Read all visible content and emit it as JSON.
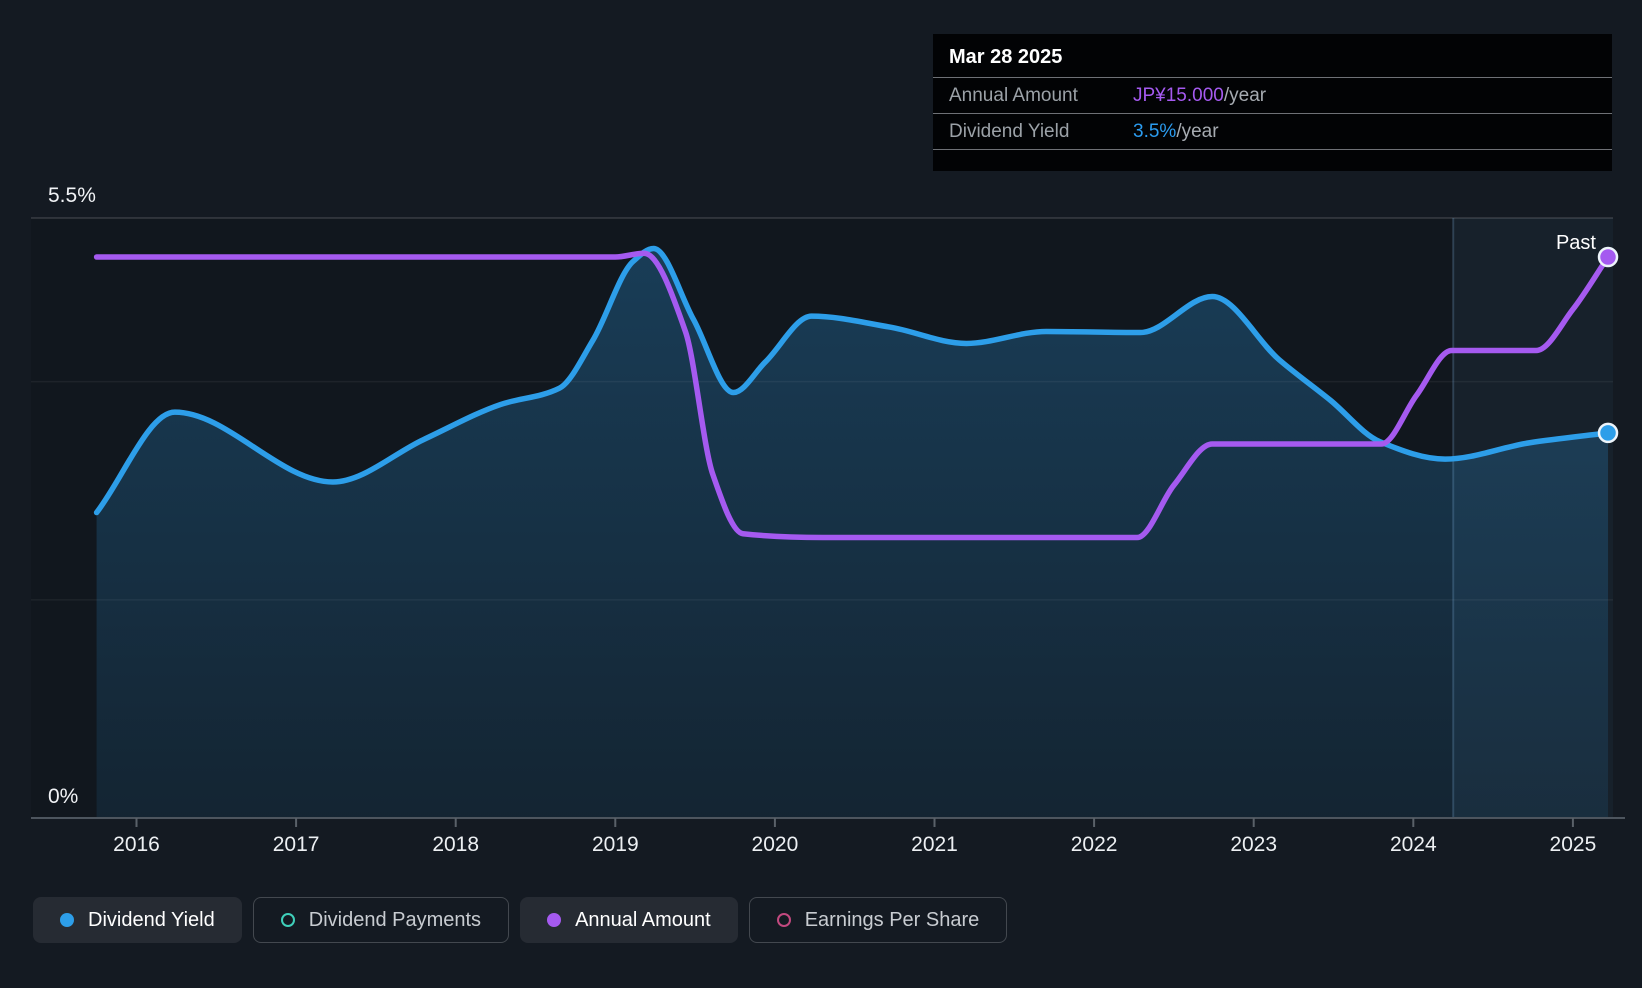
{
  "page": {
    "background": "#141A22"
  },
  "tooltip": {
    "date": "Mar 28 2025",
    "rows": [
      {
        "label": "Annual Amount",
        "value": "JP¥15.000",
        "unit": "/year",
        "value_color": "#A55AF0"
      },
      {
        "label": "Dividend Yield",
        "value": "3.5%",
        "unit": "/year",
        "value_color": "#2B9CF0"
      }
    ]
  },
  "chart": {
    "past_label": "Past",
    "y_axis": {
      "top_label": "5.5%",
      "bottom_label": "0%"
    },
    "x_axis": {
      "years": [
        "2016",
        "2017",
        "2018",
        "2019",
        "2020",
        "2021",
        "2022",
        "2023",
        "2024",
        "2025"
      ]
    }
  },
  "legend": {
    "items": [
      {
        "label": "Dividend Yield",
        "color": "#2D9EE9",
        "filled": true,
        "active": true
      },
      {
        "label": "Dividend Payments",
        "color": "#3FCFBA",
        "filled": false,
        "active": false
      },
      {
        "label": "Annual Amount",
        "color": "#A55AF0",
        "filled": true,
        "active": true
      },
      {
        "label": "Earnings Per Share",
        "color": "#C2497F",
        "filled": false,
        "active": false
      }
    ]
  },
  "chart_data": {
    "type": "line",
    "title": "Dividend yield and annual dividend amount over time",
    "x_range": [
      2015.75,
      2025.22
    ],
    "x_ticks": [
      2016,
      2017,
      2018,
      2019,
      2020,
      2021,
      2022,
      2023,
      2024,
      2025
    ],
    "past_region_start": 2024.25,
    "gridlines_percent": [
      5.5,
      4,
      2,
      0
    ],
    "tooltip_point": {
      "date": "Mar 28 2025",
      "annual_amount": "JP¥15.000/year",
      "dividend_yield": "3.5%/year"
    },
    "series": [
      {
        "name": "Dividend Yield",
        "unit": "percent_per_year",
        "color": "#2D9EE9",
        "style": "area",
        "ylim": [
          0,
          5.5
        ],
        "end_marker": true,
        "points": [
          [
            2015.75,
            2.8
          ],
          [
            2016.24,
            3.72
          ],
          [
            2017.23,
            3.08
          ],
          [
            2017.8,
            3.47
          ],
          [
            2018.28,
            3.79
          ],
          [
            2018.65,
            3.94
          ],
          [
            2018.86,
            4.38
          ],
          [
            2019.11,
            5.1
          ],
          [
            2019.24,
            5.22
          ],
          [
            2019.49,
            4.57
          ],
          [
            2019.74,
            3.9
          ],
          [
            2019.94,
            4.18
          ],
          [
            2020.23,
            4.6
          ],
          [
            2020.72,
            4.5
          ],
          [
            2021.2,
            4.35
          ],
          [
            2021.7,
            4.46
          ],
          [
            2022.29,
            4.45
          ],
          [
            2022.74,
            4.78
          ],
          [
            2023.16,
            4.2
          ],
          [
            2023.48,
            3.83
          ],
          [
            2023.79,
            3.45
          ],
          [
            2024.2,
            3.29
          ],
          [
            2024.73,
            3.44
          ],
          [
            2025.22,
            3.53
          ]
        ]
      },
      {
        "name": "Annual Amount",
        "unit": "JPY_per_year",
        "color": "#A55AF0",
        "style": "line",
        "ylim": [
          0,
          15.4
        ],
        "end_marker": true,
        "points": [
          [
            2015.75,
            15.0
          ],
          [
            2017.0,
            15.0
          ],
          [
            2018.5,
            15.0
          ],
          [
            2019.0,
            15.0
          ],
          [
            2019.18,
            15.1
          ],
          [
            2019.44,
            13.0
          ],
          [
            2019.61,
            9.2
          ],
          [
            2019.8,
            7.6
          ],
          [
            2020.3,
            7.5
          ],
          [
            2021.0,
            7.5
          ],
          [
            2022.0,
            7.5
          ],
          [
            2022.27,
            7.5
          ],
          [
            2022.5,
            8.9
          ],
          [
            2022.74,
            10.0
          ],
          [
            2023.3,
            10.0
          ],
          [
            2023.8,
            10.0
          ],
          [
            2024.02,
            11.3
          ],
          [
            2024.24,
            12.5
          ],
          [
            2024.5,
            12.5
          ],
          [
            2024.77,
            12.5
          ],
          [
            2025.0,
            13.6
          ],
          [
            2025.22,
            15.0
          ]
        ]
      }
    ]
  }
}
